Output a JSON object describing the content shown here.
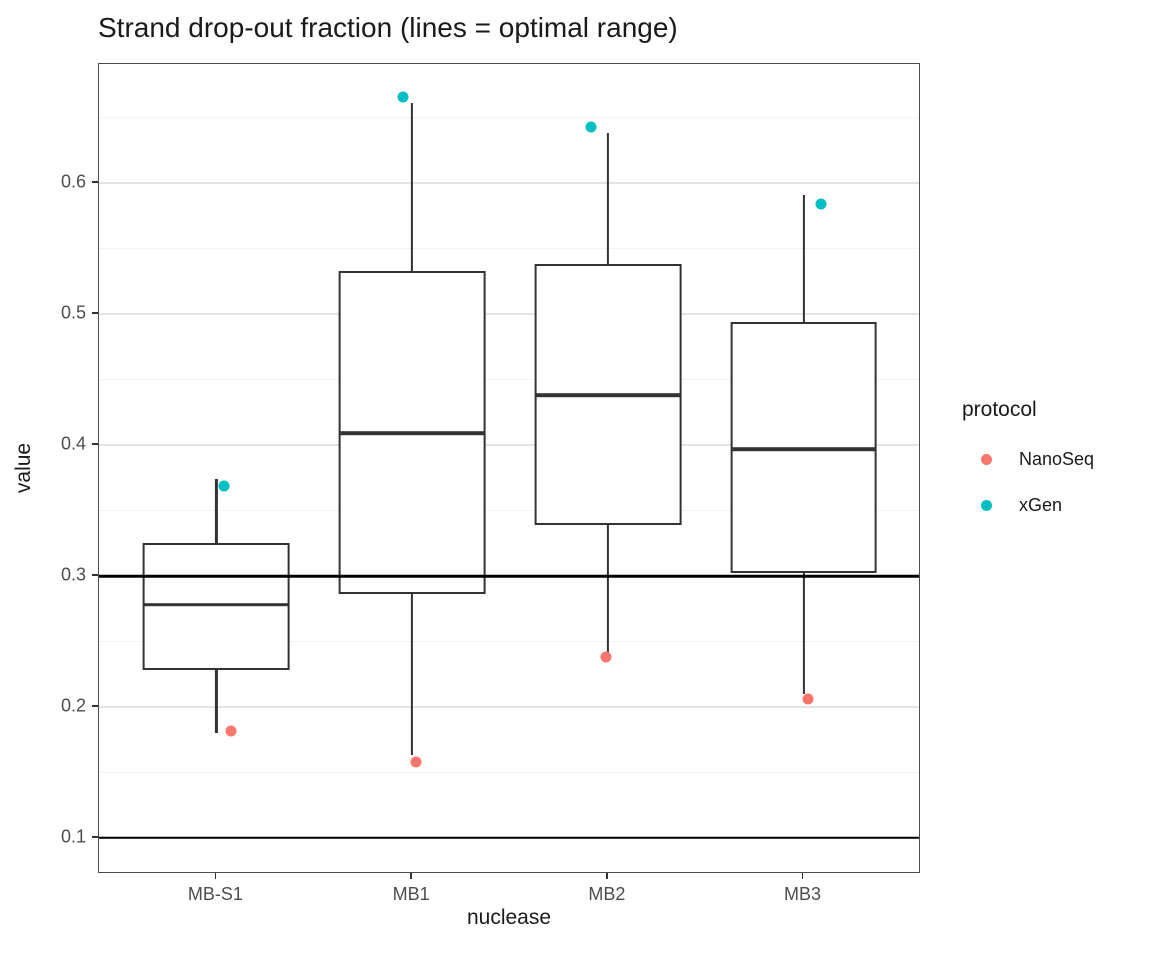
{
  "title": "Strand drop-out fraction (lines = optimal range)",
  "x_axis": {
    "label": "nuclease",
    "categories": [
      "MB-S1",
      "MB1",
      "MB2",
      "MB3"
    ]
  },
  "y_axis": {
    "label": "value",
    "tick_labels": [
      "0.1",
      "0.2",
      "0.3",
      "0.4",
      "0.5",
      "0.6"
    ]
  },
  "legend": {
    "title": "protocol",
    "items": [
      {
        "label": "NanoSeq",
        "color": "#F8766D"
      },
      {
        "label": "xGen",
        "color": "#00BFC4"
      }
    ]
  },
  "colors": {
    "box_stroke": "#333333",
    "reference_line": "#000000",
    "grid_major": "#e4e4e4",
    "grid_minor": "#f3f3f3",
    "panel_border": "#4d4d4d",
    "nanoseq": "#F8766D",
    "xgen": "#00BFC4"
  },
  "chart_data": {
    "type": "boxplot",
    "title": "Strand drop-out fraction (lines = optimal range)",
    "xlabel": "nuclease",
    "ylabel": "value",
    "categories": [
      "MB-S1",
      "MB1",
      "MB2",
      "MB3"
    ],
    "ylim": [
      0.0725,
      0.691
    ],
    "y_major_ticks": [
      0.1,
      0.2,
      0.3,
      0.4,
      0.5,
      0.6
    ],
    "y_minor_ticks": [
      0.15,
      0.25,
      0.35,
      0.45,
      0.55,
      0.65
    ],
    "reference_lines": [
      0.1,
      0.3
    ],
    "grid": true,
    "legend_position": "right",
    "boxes": [
      {
        "category": "MB-S1",
        "whisker_low": 0.18,
        "q1": 0.228,
        "median": 0.278,
        "q3": 0.325,
        "whisker_high": 0.374
      },
      {
        "category": "MB1",
        "whisker_low": 0.163,
        "q1": 0.286,
        "median": 0.409,
        "q3": 0.533,
        "whisker_high": 0.661
      },
      {
        "category": "MB2",
        "whisker_low": 0.241,
        "q1": 0.339,
        "median": 0.438,
        "q3": 0.538,
        "whisker_high": 0.638
      },
      {
        "category": "MB3",
        "whisker_low": 0.21,
        "q1": 0.302,
        "median": 0.397,
        "q3": 0.494,
        "whisker_high": 0.591
      }
    ],
    "points": [
      {
        "category": "MB-S1",
        "protocol": "xGen",
        "value": 0.369,
        "dx": 8
      },
      {
        "category": "MB-S1",
        "protocol": "NanoSeq",
        "value": 0.182,
        "dx": 15
      },
      {
        "category": "MB1",
        "protocol": "xGen",
        "value": 0.666,
        "dx": -9
      },
      {
        "category": "MB1",
        "protocol": "NanoSeq",
        "value": 0.158,
        "dx": 4
      },
      {
        "category": "MB2",
        "protocol": "xGen",
        "value": 0.643,
        "dx": -17
      },
      {
        "category": "MB2",
        "protocol": "NanoSeq",
        "value": 0.238,
        "dx": -2
      },
      {
        "category": "MB3",
        "protocol": "xGen",
        "value": 0.584,
        "dx": 17
      },
      {
        "category": "MB3",
        "protocol": "NanoSeq",
        "value": 0.206,
        "dx": 4
      }
    ]
  }
}
